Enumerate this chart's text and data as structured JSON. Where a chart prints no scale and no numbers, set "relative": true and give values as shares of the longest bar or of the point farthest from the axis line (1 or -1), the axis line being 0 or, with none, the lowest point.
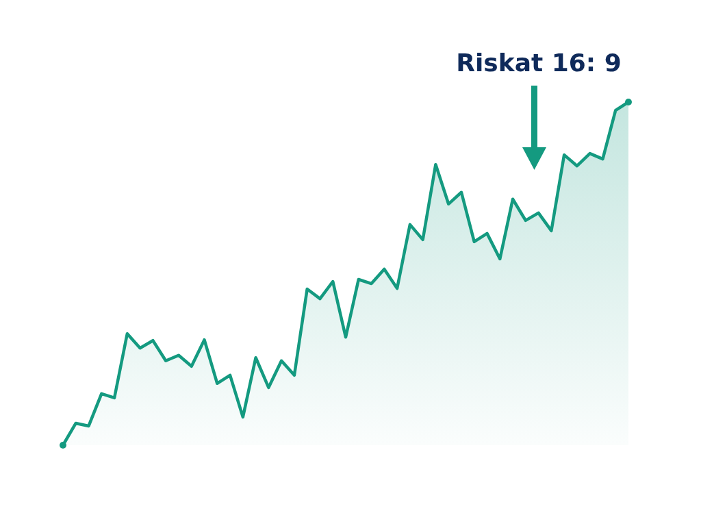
{
  "chart_data": {
    "type": "area",
    "relative": true,
    "marker": "none",
    "categories": [
      null,
      null,
      null,
      null,
      null,
      null,
      null,
      null,
      null,
      null,
      null,
      null,
      null,
      null,
      null,
      null,
      null,
      null,
      null,
      null,
      null,
      null,
      null,
      null,
      null,
      null,
      null,
      null,
      null,
      null,
      null,
      null,
      null,
      null,
      null,
      null,
      null,
      null,
      null,
      null,
      null,
      null,
      null,
      null,
      null
    ],
    "series": [
      {
        "color": "#149a80",
        "values": [
          0,
          0.064,
          0.056,
          0.15,
          0.138,
          0.325,
          0.283,
          0.305,
          0.246,
          0.262,
          0.23,
          0.307,
          0.18,
          0.204,
          0.082,
          0.255,
          0.168,
          0.246,
          0.204,
          0.455,
          0.427,
          0.477,
          0.315,
          0.483,
          0.471,
          0.513,
          0.457,
          0.643,
          0.599,
          0.818,
          0.703,
          0.737,
          0.593,
          0.617,
          0.543,
          0.717,
          0.655,
          0.677,
          0.625,
          0.846,
          0.814,
          0.85,
          0.834,
          0.976,
          1
        ]
      }
    ],
    "annotations": [
      "Riskat 16: 9"
    ]
  }
}
